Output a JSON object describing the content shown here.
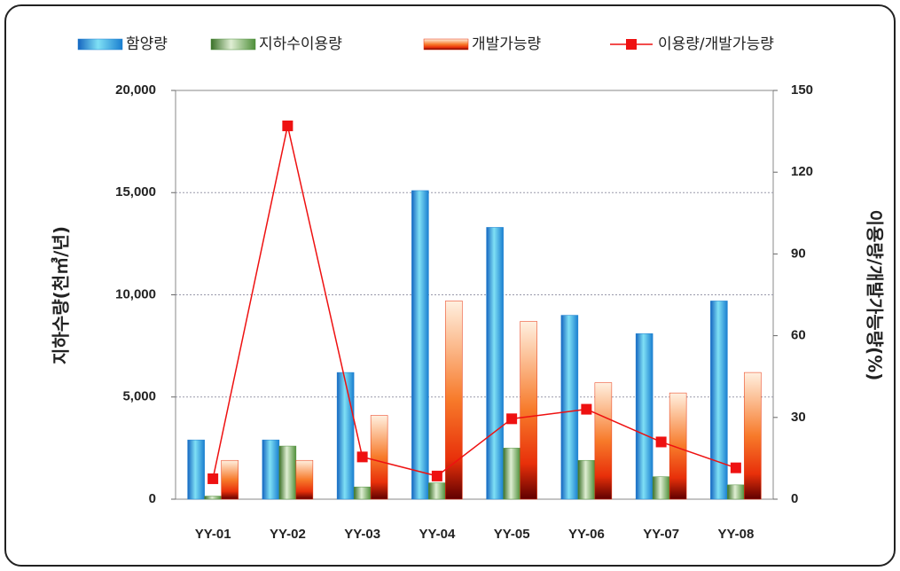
{
  "chart_data": {
    "type": "bar",
    "categories": [
      "YY-01",
      "YY-02",
      "YY-03",
      "YY-04",
      "YY-05",
      "YY-06",
      "YY-07",
      "YY-08"
    ],
    "series": [
      {
        "name": "함양량",
        "color": "#1a7fd0",
        "values": [
          2900,
          2900,
          6200,
          15100,
          13300,
          9000,
          8100,
          9700
        ]
      },
      {
        "name": "지하수이용량",
        "color": "#4f8f3a",
        "values": [
          150,
          2600,
          600,
          800,
          2500,
          1900,
          1100,
          700
        ]
      },
      {
        "name": "개발가능량",
        "color": "#e8300a",
        "values": [
          1900,
          1900,
          4100,
          9700,
          8700,
          5700,
          5200,
          6200
        ]
      },
      {
        "name": "이용량/개발가능량",
        "color": "#ee1111",
        "type": "line",
        "axis": "y2",
        "values": [
          7.5,
          137,
          15.5,
          8.5,
          29.5,
          33,
          21,
          11.5
        ]
      }
    ],
    "ylabel": "지하수량(천㎥/년)",
    "y2label": "이용량/개발가능량(%)",
    "ylim": [
      0,
      20000
    ],
    "yticks": [
      0,
      {
        "value": 5000,
        "label": "5,000"
      },
      {
        "value": 10000,
        "label": "10,000"
      },
      {
        "value": 15000,
        "label": "15,000"
      },
      {
        "value": 20000,
        "label": "20,000"
      }
    ],
    "y2lim": [
      0,
      150
    ],
    "y2ticks": [
      0,
      30,
      60,
      90,
      120,
      150
    ],
    "grid": true
  }
}
